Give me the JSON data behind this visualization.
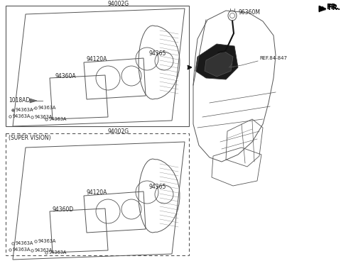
{
  "bg": "#ffffff",
  "lc": "#555555",
  "tc": "#222222",
  "top_box_label": "94002G",
  "top_part_94365": "94365",
  "top_part_94120A": "94120A",
  "top_part_94360A": "94360A",
  "top_1018AD": "1018AD",
  "top_screws": "94363A",
  "bottom_box_label": "94002G",
  "bottom_part_94365": "94365",
  "bottom_part_94120A": "94120A",
  "bottom_part_94360D": "94360D",
  "bottom_screws": "94363A",
  "super_vision": "(SUPER VISION)",
  "right_part": "96360M",
  "right_ref": "REF.84-847",
  "fr": "FR.",
  "arrow_color": "#111111"
}
